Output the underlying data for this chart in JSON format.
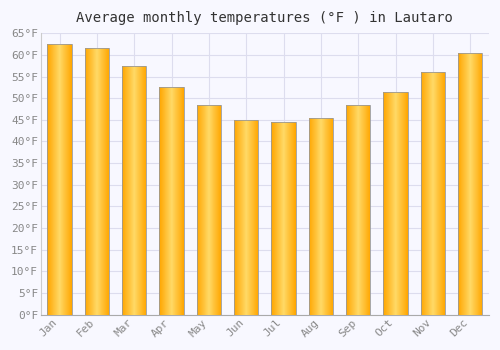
{
  "title": "Average monthly temperatures (°F ) in Lautaro",
  "months": [
    "Jan",
    "Feb",
    "Mar",
    "Apr",
    "May",
    "Jun",
    "Jul",
    "Aug",
    "Sep",
    "Oct",
    "Nov",
    "Dec"
  ],
  "values": [
    62.5,
    61.5,
    57.5,
    52.5,
    48.5,
    45.0,
    44.5,
    45.5,
    48.5,
    51.5,
    56.0,
    60.5
  ],
  "bar_color_center": "#FFD966",
  "bar_color_edge": "#FFA500",
  "bar_border_color": "#999999",
  "ylim": [
    0,
    65
  ],
  "yticks": [
    0,
    5,
    10,
    15,
    20,
    25,
    30,
    35,
    40,
    45,
    50,
    55,
    60,
    65
  ],
  "ytick_labels": [
    "0°F",
    "5°F",
    "10°F",
    "15°F",
    "20°F",
    "25°F",
    "30°F",
    "35°F",
    "40°F",
    "45°F",
    "50°F",
    "55°F",
    "60°F",
    "65°F"
  ],
  "background_color": "#F8F8FF",
  "plot_bg_color": "#F8F8FF",
  "grid_color": "#DDDDEE",
  "title_fontsize": 10,
  "tick_fontsize": 8,
  "bar_width": 0.65
}
